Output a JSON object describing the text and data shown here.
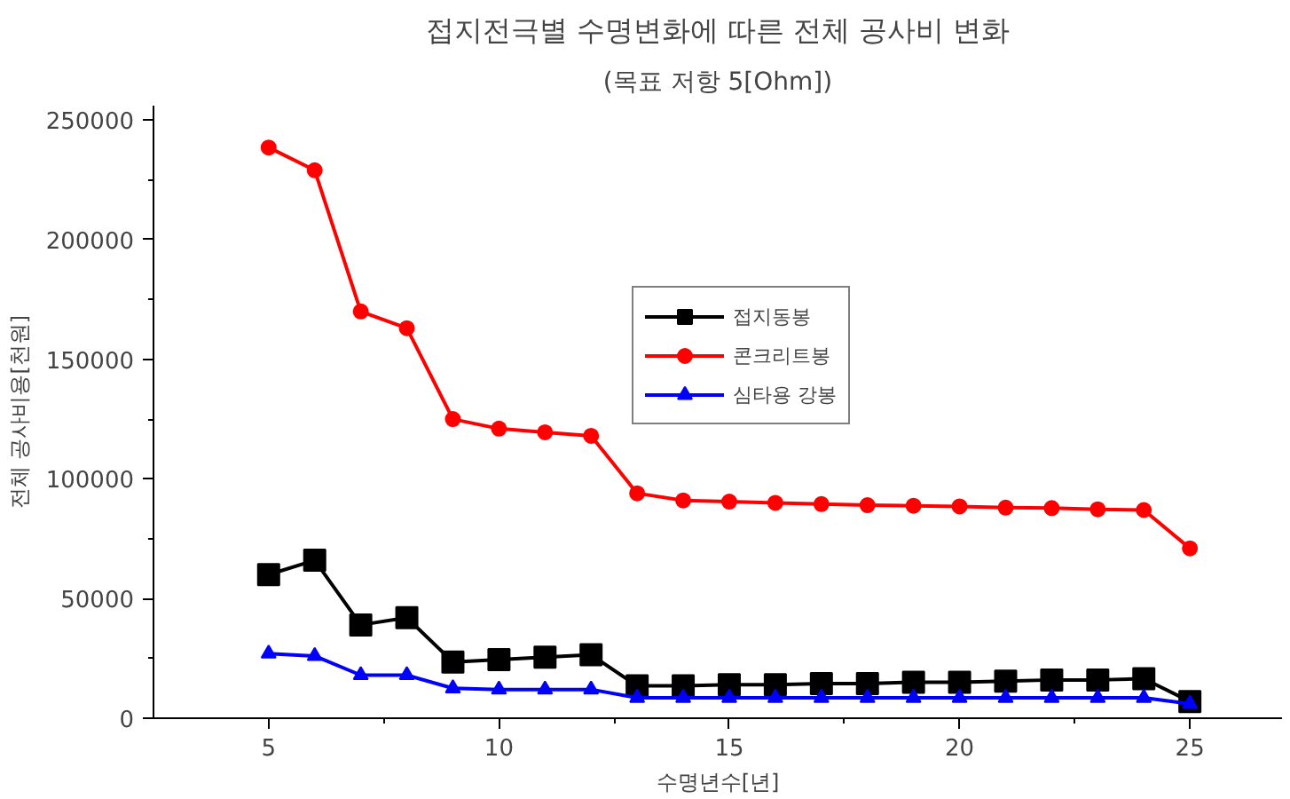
{
  "chart_data": {
    "type": "line",
    "title": "접지전극별 수명변화에 따른 전체 공사비 변화",
    "subtitle": "(목표 저항 5[Ohm])",
    "xlabel": "수명년수[년]",
    "ylabel": "전체 공사비용[천원]",
    "x": [
      5,
      6,
      7,
      8,
      9,
      10,
      11,
      12,
      13,
      14,
      15,
      16,
      17,
      18,
      19,
      20,
      21,
      22,
      23,
      24,
      25
    ],
    "series": [
      {
        "name": "접지동봉",
        "color": "#000000",
        "marker": "square",
        "values": [
          60000,
          66000,
          39000,
          42000,
          23500,
          24500,
          25500,
          26500,
          13500,
          13500,
          14000,
          14000,
          14500,
          14500,
          15000,
          15000,
          15500,
          16000,
          16000,
          16500,
          7000
        ]
      },
      {
        "name": "콘크리트봉",
        "color": "#ff0000",
        "marker": "circle",
        "values": [
          238500,
          229000,
          170000,
          163000,
          125000,
          121000,
          119500,
          118000,
          94000,
          91000,
          90500,
          90000,
          89500,
          89000,
          88800,
          88500,
          88000,
          87800,
          87300,
          87000,
          71000
        ]
      },
      {
        "name": "심타용 강봉",
        "color": "#0000ff",
        "marker": "triangle",
        "values": [
          27000,
          26000,
          18000,
          18000,
          12500,
          12000,
          12000,
          12000,
          8500,
          8500,
          8500,
          8500,
          8500,
          8500,
          8500,
          8500,
          8500,
          8500,
          8500,
          8500,
          6000
        ]
      }
    ],
    "xlim": [
      2.5,
      27
    ],
    "xticks": [
      5,
      10,
      15,
      20,
      25
    ],
    "ylim": [
      0,
      256000
    ],
    "yticks": [
      0,
      50000,
      100000,
      150000,
      200000,
      250000
    ],
    "grid": false,
    "legend": "center",
    "line_style": "solid"
  }
}
